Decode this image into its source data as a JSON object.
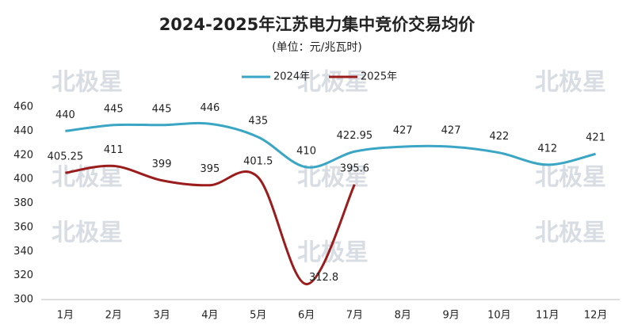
{
  "chart_data": {
    "type": "line",
    "title": "2024-2025年江苏电力集中竞价交易均价",
    "subtitle": "(单位：元/兆瓦时)",
    "watermark": "北极星",
    "categories": [
      "1月",
      "2月",
      "3月",
      "4月",
      "5月",
      "6月",
      "7月",
      "8月",
      "9月",
      "10月",
      "11月",
      "12月"
    ],
    "series": [
      {
        "name": "2024年",
        "color": "#3aa6c4",
        "values": [
          440,
          445,
          445,
          446,
          435,
          410,
          422.95,
          427,
          427,
          422,
          412,
          421
        ]
      },
      {
        "name": "2025年",
        "color": "#9b1c1c",
        "values": [
          405.25,
          411,
          399,
          395,
          401.5,
          312.8,
          395.6,
          null,
          null,
          null,
          null,
          null
        ]
      }
    ],
    "ylim": [
      300,
      460
    ],
    "yticks": [
      300,
      320,
      340,
      360,
      380,
      400,
      420,
      440,
      460
    ],
    "grid": false,
    "legend": "top"
  }
}
